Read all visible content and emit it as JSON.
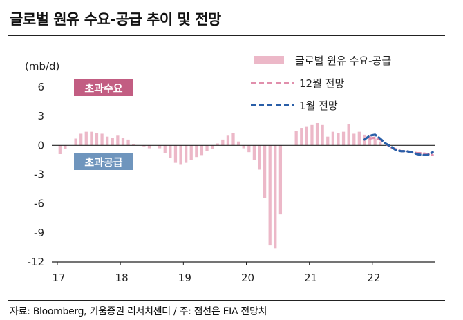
{
  "title": "글로벌 원유 수요-공급 추이 및 전망",
  "source": "자료: Bloomberg, 키움증권 리서치센터 / 주: 점선은 EIA 전망치",
  "colors": {
    "bar": "#ecb8c8",
    "dec_forecast": "#e18fac",
    "jan_forecast": "#2a5fa8",
    "excess_demand_box": "#c25d82",
    "excess_supply_box": "#6f95bd",
    "axis": "#222222"
  },
  "chart_data": {
    "type": "bar",
    "title": "글로벌 원유 수요-공급 추이 및 전망",
    "ylabel": "(mb/d)",
    "ylim": [
      -12,
      6
    ],
    "yticks": [
      6,
      3,
      0,
      -3,
      -6,
      -9,
      -12
    ],
    "ytick_labels": [
      "6",
      "3",
      "0",
      "-3",
      "-6",
      "-9",
      "-12"
    ],
    "xlim": [
      0,
      72
    ],
    "xticks": [
      {
        "label": "17",
        "x": 0
      },
      {
        "label": "18",
        "x": 12
      },
      {
        "label": "19",
        "x": 24
      },
      {
        "label": "20",
        "x": 36
      },
      {
        "label": "21",
        "x": 48
      },
      {
        "label": "22",
        "x": 60
      }
    ],
    "annotations": {
      "excess_demand": "초과수요",
      "excess_supply": "초과공급"
    },
    "series": [
      {
        "name": "글로벌 원유 수요-공급",
        "kind": "bar",
        "values": [
          -0.9,
          -0.4,
          0.0,
          0.7,
          1.2,
          1.4,
          1.4,
          1.3,
          1.2,
          0.9,
          0.8,
          1.0,
          0.8,
          0.6,
          0.1,
          0.0,
          -0.1,
          -0.3,
          0.0,
          -0.3,
          -0.8,
          -1.3,
          -1.8,
          -2.0,
          -1.8,
          -1.5,
          -1.2,
          -1.0,
          -0.6,
          -0.4,
          0.2,
          0.6,
          1.0,
          1.3,
          0.4,
          -0.3,
          -0.7,
          -1.5,
          -2.5,
          -5.4,
          -10.3,
          -10.6,
          -7.1,
          0.0,
          0.0,
          1.5,
          1.8,
          1.9,
          2.1,
          2.3,
          2.1,
          0.9,
          1.4,
          1.3,
          1.4,
          2.2,
          1.2,
          1.4,
          1.1,
          1.0,
          0.7,
          0.4,
          0.0
        ]
      },
      {
        "name": "12월 전망",
        "kind": "line",
        "x": [
          59,
          60,
          61,
          62,
          63,
          64,
          65,
          66,
          67,
          68,
          69,
          70,
          71
        ],
        "values": [
          0.7,
          0.8,
          0.6,
          0.2,
          -0.2,
          -0.4,
          -0.6,
          -0.6,
          -0.7,
          -0.8,
          -0.8,
          -0.9,
          -1.0
        ]
      },
      {
        "name": "1월 전망",
        "kind": "line",
        "x": [
          58,
          59,
          60,
          61,
          62,
          63,
          64,
          65,
          66,
          67,
          68,
          69,
          70,
          71
        ],
        "values": [
          0.6,
          1.0,
          1.1,
          0.7,
          0.2,
          -0.1,
          -0.5,
          -0.6,
          -0.6,
          -0.7,
          -0.9,
          -1.0,
          -1.0,
          -0.7
        ]
      }
    ],
    "legend": [
      "글로벌 원유 수요-공급",
      "12월 전망",
      "1월 전망"
    ],
    "legend_position": "top-right"
  }
}
